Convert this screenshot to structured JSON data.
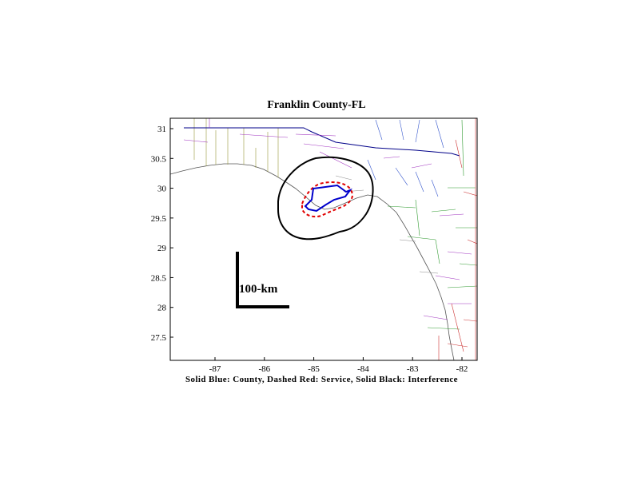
{
  "title": "Franklin County-FL",
  "caption": "Solid Blue: County, Dashed Red: Service, Solid Black: Interference",
  "scale_bar": {
    "label": "100-km"
  },
  "axes": {
    "x_ticks": [
      "-87",
      "-86",
      "-85",
      "-84",
      "-83",
      "-82"
    ],
    "y_ticks": [
      "31",
      "30.5",
      "30",
      "29.5",
      "29",
      "28.5",
      "28",
      "27.5"
    ]
  },
  "legend_colors": {
    "county": "#0000cc",
    "service": "#e00000",
    "interference": "#000000"
  }
}
